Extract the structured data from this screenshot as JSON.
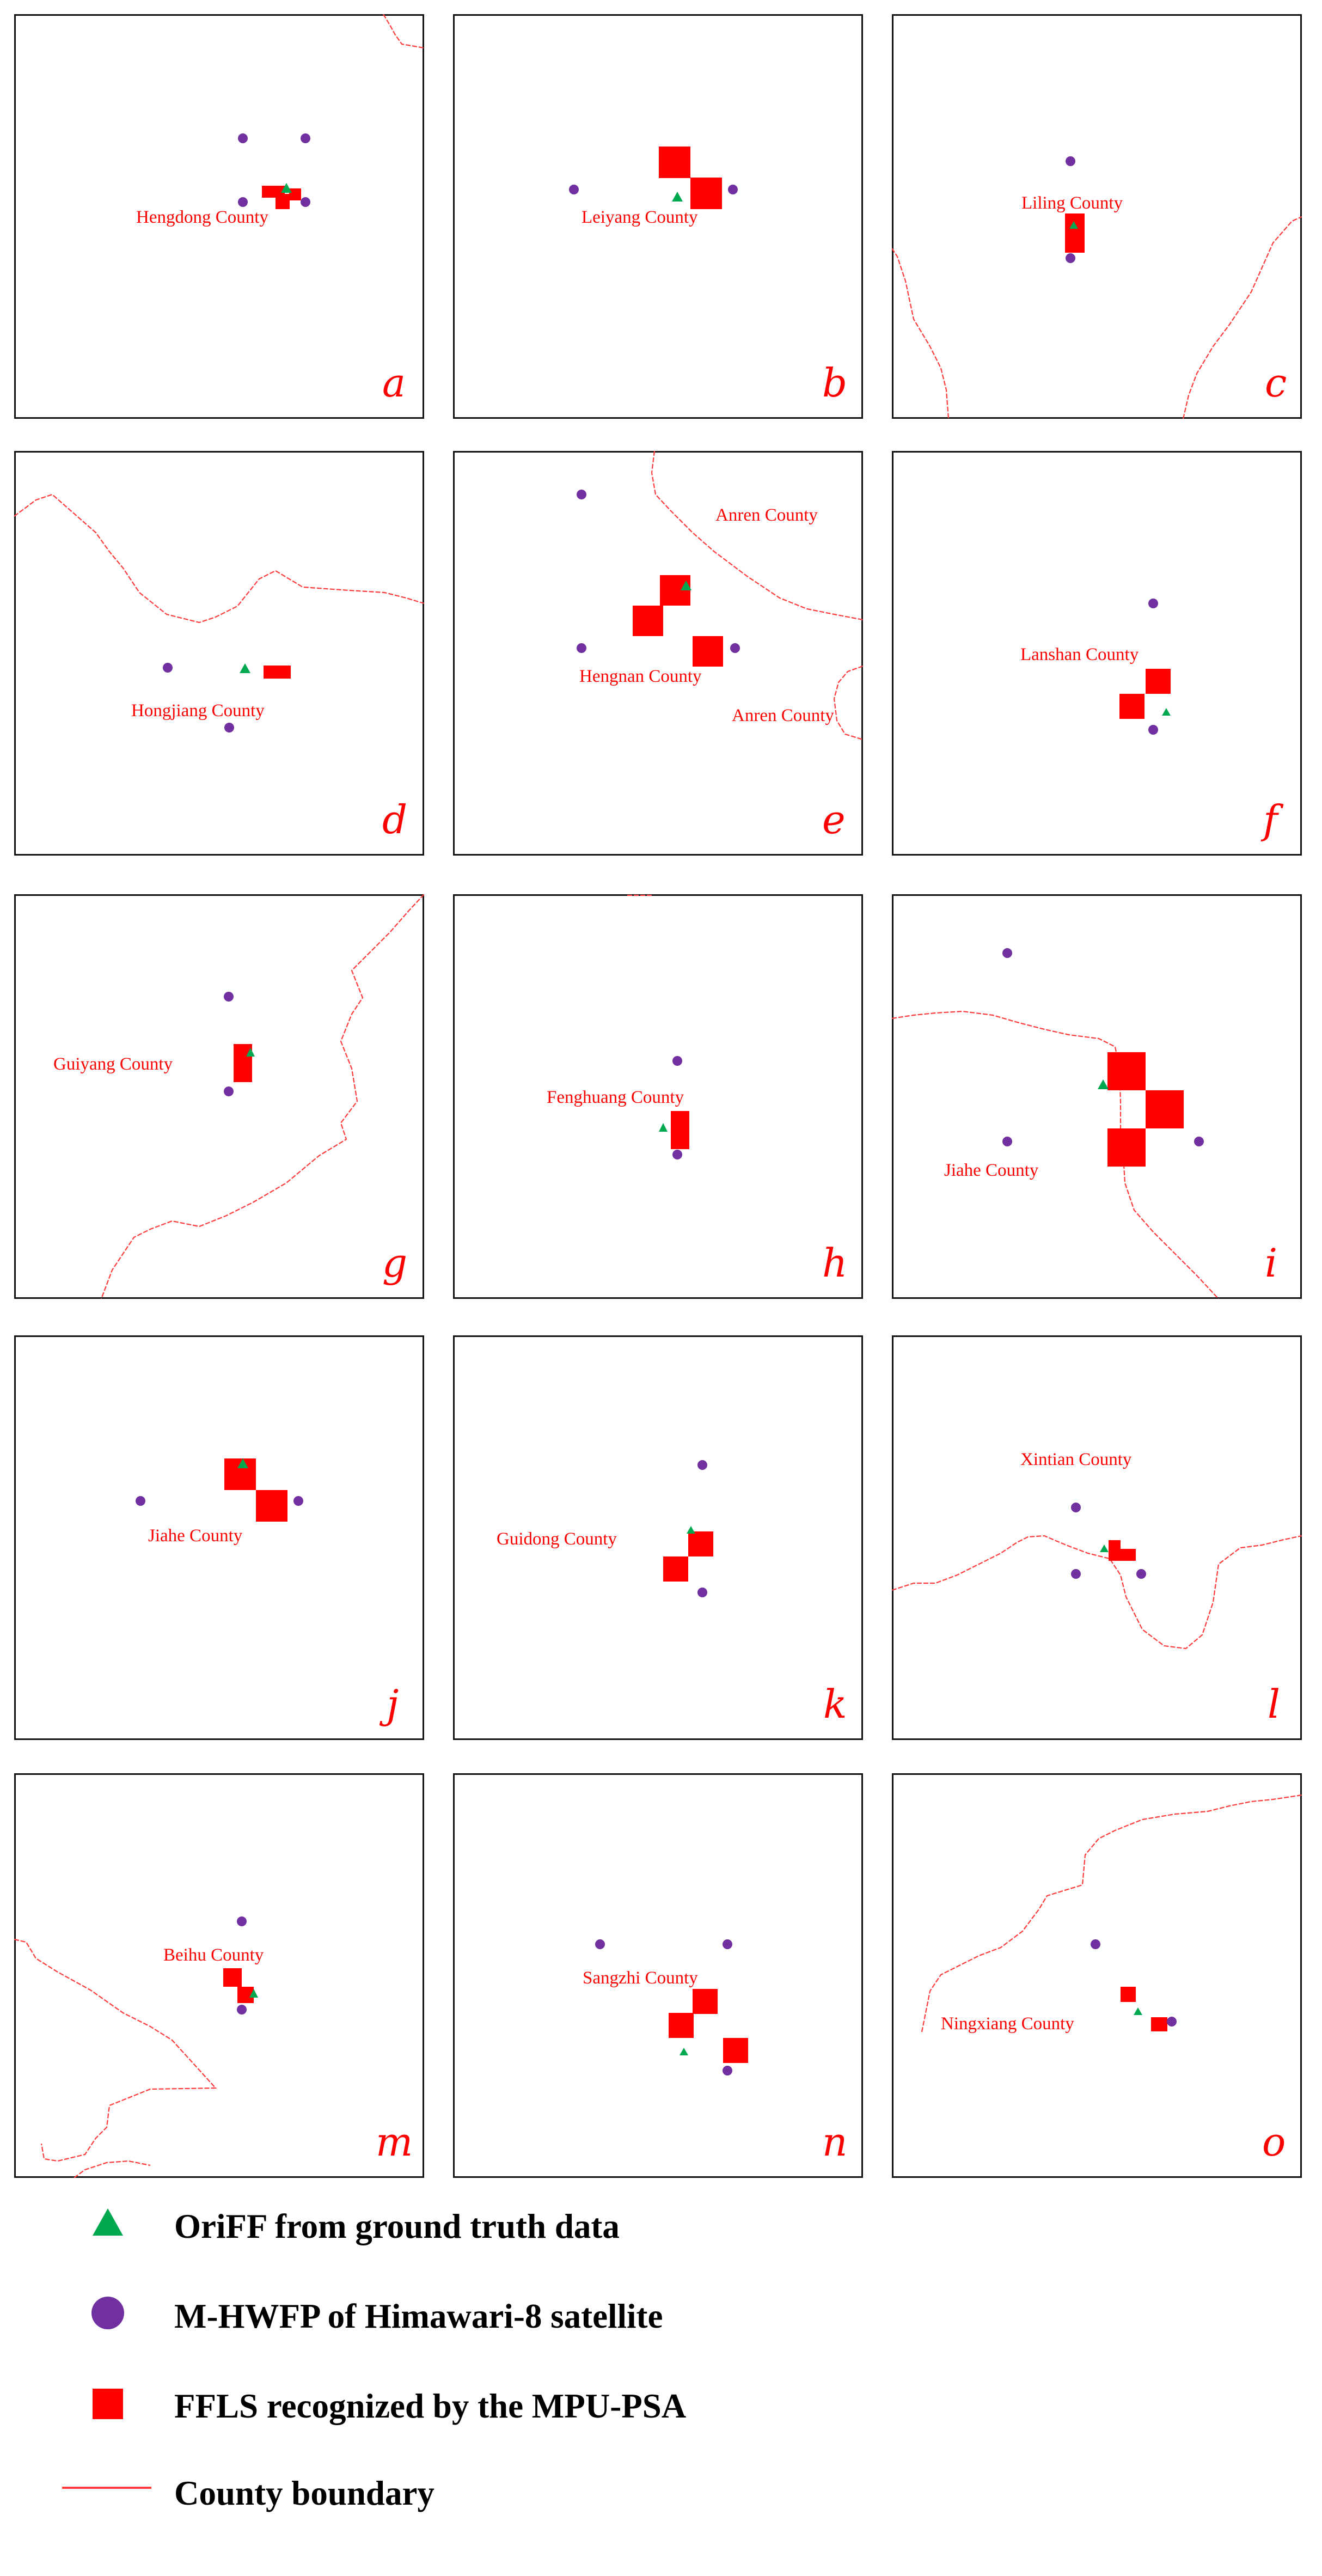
{
  "colors": {
    "fire_pixel": "#ff0000",
    "himawari_point": "#7030a0",
    "ground_truth": "#00a84f",
    "boundary": "#ff3b3b",
    "text": "#ff0000"
  },
  "panels": [
    {
      "letter": "a",
      "labels": [
        "Hengdong County"
      ]
    },
    {
      "letter": "b",
      "labels": [
        "Leiyang County"
      ]
    },
    {
      "letter": "c",
      "labels": [
        "Liling County"
      ]
    },
    {
      "letter": "d",
      "labels": [
        "Hongjiang County"
      ]
    },
    {
      "letter": "e",
      "labels": [
        "Anren County",
        "Hengnan County",
        "Anren County"
      ]
    },
    {
      "letter": "f",
      "labels": [
        "Lanshan County"
      ]
    },
    {
      "letter": "g",
      "labels": [
        "Guiyang County"
      ]
    },
    {
      "letter": "h",
      "labels": [
        "Fenghuang County"
      ]
    },
    {
      "letter": "i",
      "labels": [
        "Jiahe County"
      ]
    },
    {
      "letter": "j",
      "labels": [
        "Jiahe County"
      ]
    },
    {
      "letter": "k",
      "labels": [
        "Guidong County"
      ]
    },
    {
      "letter": "l",
      "labels": [
        "Xintian County"
      ]
    },
    {
      "letter": "m",
      "labels": [
        "Beihu County"
      ]
    },
    {
      "letter": "n",
      "labels": [
        "Sangzhi County"
      ]
    },
    {
      "letter": "o",
      "labels": [
        "Ningxiang County"
      ]
    }
  ],
  "legend": [
    {
      "symbol": "green-triangle",
      "label": "OriFF from ground truth data"
    },
    {
      "symbol": "purple-circle",
      "label": "M-HWFP of Himawari-8 satellite"
    },
    {
      "symbol": "red-square",
      "label": "FFLS  recognized by the MPU-PSA"
    },
    {
      "symbol": "red-line",
      "label": "County boundary"
    }
  ]
}
